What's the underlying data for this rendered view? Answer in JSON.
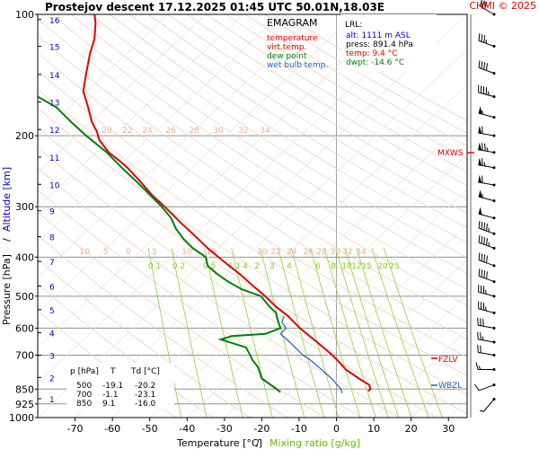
{
  "header": {
    "title": "Prostejov   descent   17.12.2025 01:45 UTC  50.01N,18.03E",
    "credit": "CHMI © 2025"
  },
  "legend": {
    "title": "EMAGRAM",
    "items": [
      {
        "label": "temperature",
        "color": "#e00000"
      },
      {
        "label": "virt.temp.",
        "color": "#e00000"
      },
      {
        "label": "dew point",
        "color": "#008000"
      },
      {
        "label": "wet bulb temp.",
        "color": "#2060c0"
      }
    ]
  },
  "lrl": {
    "title": "LRL:",
    "rows": [
      {
        "text": "alt: 1111 m ASL",
        "color": "#0000c0"
      },
      {
        "text": "press: 891.4 hPa",
        "color": "#000000"
      },
      {
        "text": "temp: 9.4 °C",
        "color": "#e00000"
      },
      {
        "text": "dwpt: -14.6 °C",
        "color": "#008000"
      }
    ]
  },
  "levels_table": {
    "headers": [
      "p [hPa]",
      "T",
      "Td [°C]"
    ],
    "rows": [
      [
        "500",
        "-19.1",
        "-20.2"
      ],
      [
        "700",
        "-1.1",
        "-23.1"
      ],
      [
        "850",
        "9.1",
        "-16.0"
      ]
    ]
  },
  "markers": {
    "mxws": "MXWS",
    "fzlv": "FZLV",
    "wbzl": "WBZL"
  },
  "chart_data": {
    "type": "line",
    "xlabel": "Temperature [°C]",
    "xlabel_sep": "/",
    "xlabel2": "Mixing ratio [g/kg]",
    "ylabel": "Pressure [hPa]",
    "ylabel_sep": "/",
    "ylabel2": "Altitude [km]",
    "xlim": [
      -80,
      35
    ],
    "ylim": [
      1000,
      100
    ],
    "y_scale": "log",
    "x_ticks": [
      -70,
      -60,
      -50,
      -40,
      -30,
      -20,
      -10,
      0,
      10,
      20,
      30
    ],
    "pressure_ticks": [
      100,
      200,
      300,
      400,
      500,
      600,
      700,
      850,
      925,
      1000
    ],
    "altitude_ticks_km": [
      1,
      2,
      3,
      4,
      5,
      6,
      7,
      8,
      9,
      10,
      11,
      12,
      13,
      14,
      15,
      16
    ],
    "altitude_pressures": [
      898,
      795,
      701,
      616,
      540,
      472,
      410,
      356,
      307,
      264,
      226,
      193,
      165,
      141,
      120,
      103
    ],
    "mixing_ratio_labels_upper": [
      "0.1",
      "0.2",
      "0.5",
      "1",
      "1",
      "4",
      "2",
      "3",
      "4",
      "6",
      "8",
      "10",
      "12",
      "15",
      "20",
      "25"
    ],
    "mixing_ratio_labels_mid": [
      "10",
      "5",
      "0",
      "5",
      "10",
      "15",
      "20",
      "22",
      "24",
      "26",
      "28",
      "30",
      "32",
      "34"
    ],
    "mixing_ratio_labels_top": [
      "20",
      "22",
      "24",
      "26",
      "28",
      "30",
      "32",
      "34"
    ],
    "series": [
      {
        "name": "temperature",
        "color": "#e00000",
        "points": [
          [
            860,
            8.5
          ],
          [
            850,
            9.1
          ],
          [
            830,
            8.8
          ],
          [
            800,
            6.0
          ],
          [
            760,
            2.5
          ],
          [
            720,
            0.2
          ],
          [
            700,
            -1.1
          ],
          [
            650,
            -5.2
          ],
          [
            600,
            -9.8
          ],
          [
            560,
            -13.0
          ],
          [
            530,
            -16.3
          ],
          [
            500,
            -19.1
          ],
          [
            470,
            -22.5
          ],
          [
            440,
            -26.0
          ],
          [
            410,
            -30.2
          ],
          [
            380,
            -34.5
          ],
          [
            350,
            -38.5
          ],
          [
            330,
            -41.5
          ],
          [
            300,
            -46.0
          ],
          [
            280,
            -49.5
          ],
          [
            260,
            -52.5
          ],
          [
            240,
            -56.0
          ],
          [
            230,
            -58.3
          ],
          [
            220,
            -61.0
          ],
          [
            205,
            -63.5
          ],
          [
            195,
            -64.2
          ],
          [
            185,
            -65.5
          ],
          [
            170,
            -66.5
          ],
          [
            155,
            -67.8
          ],
          [
            140,
            -67.0
          ],
          [
            125,
            -66.0
          ],
          [
            115,
            -64.8
          ],
          [
            105,
            -64.5
          ],
          [
            100,
            -64.8
          ]
        ]
      },
      {
        "name": "dew point",
        "color": "#008000",
        "points": [
          [
            865,
            -15.0
          ],
          [
            850,
            -16.0
          ],
          [
            800,
            -20.0
          ],
          [
            750,
            -21.0
          ],
          [
            720,
            -22.5
          ],
          [
            700,
            -23.1
          ],
          [
            670,
            -24.2
          ],
          [
            640,
            -31.0
          ],
          [
            628,
            -28.0
          ],
          [
            620,
            -19.0
          ],
          [
            600,
            -15.0
          ],
          [
            570,
            -15.8
          ],
          [
            550,
            -16.2
          ],
          [
            530,
            -18.0
          ],
          [
            500,
            -20.2
          ],
          [
            480,
            -25.5
          ],
          [
            460,
            -29.0
          ],
          [
            440,
            -32.0
          ],
          [
            420,
            -34.5
          ],
          [
            400,
            -35.0
          ],
          [
            380,
            -38.5
          ],
          [
            360,
            -41.0
          ],
          [
            340,
            -43.0
          ],
          [
            320,
            -44.3
          ],
          [
            300,
            -46.8
          ],
          [
            280,
            -50.0
          ],
          [
            260,
            -53.5
          ],
          [
            240,
            -57.5
          ],
          [
            220,
            -61.5
          ],
          [
            200,
            -67.0
          ],
          [
            185,
            -71.0
          ],
          [
            170,
            -75.0
          ],
          [
            160,
            -80.0
          ]
        ]
      },
      {
        "name": "wet bulb temp.",
        "color": "#2060c0",
        "points": [
          [
            870,
            1.5
          ],
          [
            850,
            1.2
          ],
          [
            800,
            -1.3
          ],
          [
            760,
            -4.0
          ],
          [
            720,
            -7.0
          ],
          [
            700,
            -9.0
          ],
          [
            650,
            -12.5
          ],
          [
            620,
            -15.0
          ],
          [
            600,
            -13.5
          ],
          [
            580,
            -14.6
          ],
          [
            560,
            -14.0
          ]
        ]
      }
    ],
    "winds": [
      {
        "p": 100,
        "dir": 300,
        "kt": 30
      },
      {
        "p": 120,
        "dir": 290,
        "kt": 35
      },
      {
        "p": 140,
        "dir": 290,
        "kt": 40
      },
      {
        "p": 160,
        "dir": 285,
        "kt": 45
      },
      {
        "p": 180,
        "dir": 285,
        "kt": 55
      },
      {
        "p": 200,
        "dir": 280,
        "kt": 60
      },
      {
        "p": 220,
        "dir": 280,
        "kt": 75
      },
      {
        "p": 240,
        "dir": 280,
        "kt": 65
      },
      {
        "p": 265,
        "dir": 280,
        "kt": 60
      },
      {
        "p": 290,
        "dir": 285,
        "kt": 55
      },
      {
        "p": 320,
        "dir": 285,
        "kt": 50
      },
      {
        "p": 350,
        "dir": 290,
        "kt": 45
      },
      {
        "p": 380,
        "dir": 290,
        "kt": 45
      },
      {
        "p": 420,
        "dir": 290,
        "kt": 40
      },
      {
        "p": 460,
        "dir": 290,
        "kt": 40
      },
      {
        "p": 500,
        "dir": 285,
        "kt": 35
      },
      {
        "p": 550,
        "dir": 285,
        "kt": 35
      },
      {
        "p": 600,
        "dir": 280,
        "kt": 30
      },
      {
        "p": 650,
        "dir": 280,
        "kt": 25
      },
      {
        "p": 700,
        "dir": 280,
        "kt": 20
      },
      {
        "p": 760,
        "dir": 270,
        "kt": 15
      },
      {
        "p": 830,
        "dir": 250,
        "kt": 10
      },
      {
        "p": 900,
        "dir": 220,
        "kt": 5
      }
    ]
  }
}
